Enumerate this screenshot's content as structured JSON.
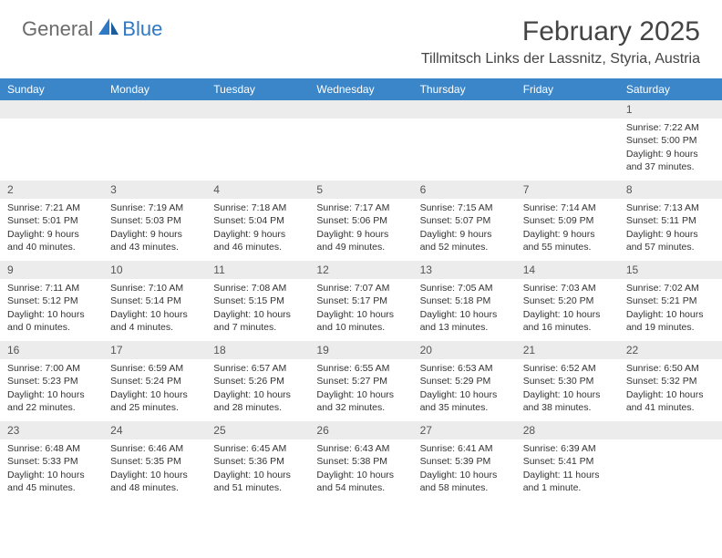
{
  "logo": {
    "text1": "General",
    "text2": "Blue"
  },
  "title": "February 2025",
  "location": "Tillmitsch Links der Lassnitz, Styria, Austria",
  "colors": {
    "header_bg": "#3b86c8",
    "header_text": "#ffffff",
    "date_bg": "#ececec",
    "date_text": "#555555",
    "body_text": "#333333",
    "logo_gray": "#6b6b6b",
    "logo_blue": "#2f78c4",
    "title_color": "#444444"
  },
  "typography": {
    "title_fontsize": 30,
    "location_fontsize": 16,
    "header_fontsize": 12,
    "date_fontsize": 12,
    "cell_fontsize": 10.5
  },
  "day_headers": [
    "Sunday",
    "Monday",
    "Tuesday",
    "Wednesday",
    "Thursday",
    "Friday",
    "Saturday"
  ],
  "weeks": [
    [
      null,
      null,
      null,
      null,
      null,
      null,
      {
        "date": "1",
        "sunrise": "7:22 AM",
        "sunset": "5:00 PM",
        "daylight": "9 hours and 37 minutes."
      }
    ],
    [
      {
        "date": "2",
        "sunrise": "7:21 AM",
        "sunset": "5:01 PM",
        "daylight": "9 hours and 40 minutes."
      },
      {
        "date": "3",
        "sunrise": "7:19 AM",
        "sunset": "5:03 PM",
        "daylight": "9 hours and 43 minutes."
      },
      {
        "date": "4",
        "sunrise": "7:18 AM",
        "sunset": "5:04 PM",
        "daylight": "9 hours and 46 minutes."
      },
      {
        "date": "5",
        "sunrise": "7:17 AM",
        "sunset": "5:06 PM",
        "daylight": "9 hours and 49 minutes."
      },
      {
        "date": "6",
        "sunrise": "7:15 AM",
        "sunset": "5:07 PM",
        "daylight": "9 hours and 52 minutes."
      },
      {
        "date": "7",
        "sunrise": "7:14 AM",
        "sunset": "5:09 PM",
        "daylight": "9 hours and 55 minutes."
      },
      {
        "date": "8",
        "sunrise": "7:13 AM",
        "sunset": "5:11 PM",
        "daylight": "9 hours and 57 minutes."
      }
    ],
    [
      {
        "date": "9",
        "sunrise": "7:11 AM",
        "sunset": "5:12 PM",
        "daylight": "10 hours and 0 minutes."
      },
      {
        "date": "10",
        "sunrise": "7:10 AM",
        "sunset": "5:14 PM",
        "daylight": "10 hours and 4 minutes."
      },
      {
        "date": "11",
        "sunrise": "7:08 AM",
        "sunset": "5:15 PM",
        "daylight": "10 hours and 7 minutes."
      },
      {
        "date": "12",
        "sunrise": "7:07 AM",
        "sunset": "5:17 PM",
        "daylight": "10 hours and 10 minutes."
      },
      {
        "date": "13",
        "sunrise": "7:05 AM",
        "sunset": "5:18 PM",
        "daylight": "10 hours and 13 minutes."
      },
      {
        "date": "14",
        "sunrise": "7:03 AM",
        "sunset": "5:20 PM",
        "daylight": "10 hours and 16 minutes."
      },
      {
        "date": "15",
        "sunrise": "7:02 AM",
        "sunset": "5:21 PM",
        "daylight": "10 hours and 19 minutes."
      }
    ],
    [
      {
        "date": "16",
        "sunrise": "7:00 AM",
        "sunset": "5:23 PM",
        "daylight": "10 hours and 22 minutes."
      },
      {
        "date": "17",
        "sunrise": "6:59 AM",
        "sunset": "5:24 PM",
        "daylight": "10 hours and 25 minutes."
      },
      {
        "date": "18",
        "sunrise": "6:57 AM",
        "sunset": "5:26 PM",
        "daylight": "10 hours and 28 minutes."
      },
      {
        "date": "19",
        "sunrise": "6:55 AM",
        "sunset": "5:27 PM",
        "daylight": "10 hours and 32 minutes."
      },
      {
        "date": "20",
        "sunrise": "6:53 AM",
        "sunset": "5:29 PM",
        "daylight": "10 hours and 35 minutes."
      },
      {
        "date": "21",
        "sunrise": "6:52 AM",
        "sunset": "5:30 PM",
        "daylight": "10 hours and 38 minutes."
      },
      {
        "date": "22",
        "sunrise": "6:50 AM",
        "sunset": "5:32 PM",
        "daylight": "10 hours and 41 minutes."
      }
    ],
    [
      {
        "date": "23",
        "sunrise": "6:48 AM",
        "sunset": "5:33 PM",
        "daylight": "10 hours and 45 minutes."
      },
      {
        "date": "24",
        "sunrise": "6:46 AM",
        "sunset": "5:35 PM",
        "daylight": "10 hours and 48 minutes."
      },
      {
        "date": "25",
        "sunrise": "6:45 AM",
        "sunset": "5:36 PM",
        "daylight": "10 hours and 51 minutes."
      },
      {
        "date": "26",
        "sunrise": "6:43 AM",
        "sunset": "5:38 PM",
        "daylight": "10 hours and 54 minutes."
      },
      {
        "date": "27",
        "sunrise": "6:41 AM",
        "sunset": "5:39 PM",
        "daylight": "10 hours and 58 minutes."
      },
      {
        "date": "28",
        "sunrise": "6:39 AM",
        "sunset": "5:41 PM",
        "daylight": "11 hours and 1 minute."
      },
      null
    ]
  ],
  "labels": {
    "sunrise": "Sunrise:",
    "sunset": "Sunset:",
    "daylight": "Daylight:"
  }
}
